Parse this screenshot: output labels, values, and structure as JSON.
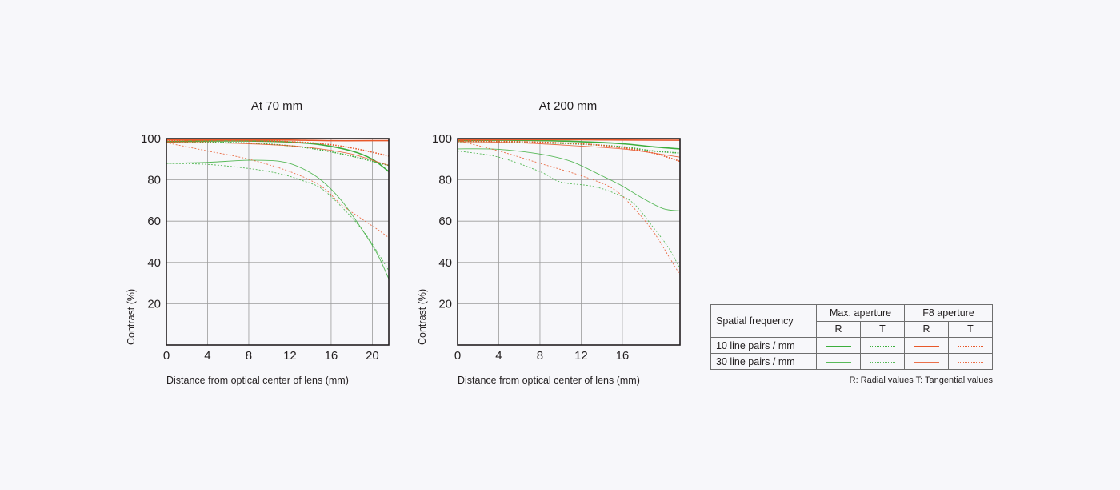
{
  "colors": {
    "max_aperture": "#3cae3c",
    "f8_aperture": "#e8582a",
    "background": "#f7f7fa",
    "grid": "#9b9b9b",
    "frame": "#231f20"
  },
  "chart_data": [
    {
      "type": "line",
      "title": "At 70 mm",
      "xlabel": "Distance from optical center of lens (mm)",
      "ylabel": "Contrast (%)",
      "xlim": [
        0,
        21.6
      ],
      "ylim": [
        0,
        100
      ],
      "x_ticks": [
        "0",
        "4",
        "8",
        "12",
        "16",
        "20"
      ],
      "y_ticks": [
        "20",
        "40",
        "60",
        "80",
        "100"
      ],
      "series": [
        {
          "group": "max_aperture",
          "frequency": "10 line pairs / mm",
          "component": "R",
          "points": [
            [
              0,
              98.5
            ],
            [
              4,
              98.8
            ],
            [
              8,
              98.8
            ],
            [
              12,
              98.3
            ],
            [
              15,
              97
            ],
            [
              18,
              94
            ],
            [
              20,
              90
            ],
            [
              21.6,
              84
            ]
          ]
        },
        {
          "group": "max_aperture",
          "frequency": "10 line pairs / mm",
          "component": "T",
          "points": [
            [
              0,
              98
            ],
            [
              4,
              98.2
            ],
            [
              8,
              97.8
            ],
            [
              12,
              96.5
            ],
            [
              15,
              94.5
            ],
            [
              18,
              91.5
            ],
            [
              20,
              89
            ],
            [
              21.6,
              87
            ]
          ]
        },
        {
          "group": "max_aperture",
          "frequency": "30 line pairs / mm",
          "component": "R",
          "points": [
            [
              0,
              88
            ],
            [
              4,
              88.5
            ],
            [
              8,
              89.5
            ],
            [
              11,
              89
            ],
            [
              13,
              86
            ],
            [
              15,
              80
            ],
            [
              17,
              70
            ],
            [
              19,
              56
            ],
            [
              20.5,
              44
            ],
            [
              21.6,
              32
            ]
          ]
        },
        {
          "group": "max_aperture",
          "frequency": "30 line pairs / mm",
          "component": "T",
          "points": [
            [
              0,
              88
            ],
            [
              4,
              87.5
            ],
            [
              8,
              85.5
            ],
            [
              11,
              83
            ],
            [
              13,
              80
            ],
            [
              15,
              76
            ],
            [
              17,
              67
            ],
            [
              19,
              56
            ],
            [
              20.5,
              45
            ],
            [
              21.6,
              36
            ]
          ]
        },
        {
          "group": "f8_aperture",
          "frequency": "10 line pairs / mm",
          "component": "R",
          "points": [
            [
              0,
              99.3
            ],
            [
              6,
              99.4
            ],
            [
              12,
              99.3
            ],
            [
              16,
              99
            ],
            [
              20,
              99
            ],
            [
              21.6,
              99
            ]
          ]
        },
        {
          "group": "f8_aperture",
          "frequency": "10 line pairs / mm",
          "component": "T",
          "points": [
            [
              0,
              98.8
            ],
            [
              6,
              99
            ],
            [
              12,
              98.5
            ],
            [
              16,
              97
            ],
            [
              19,
              94.5
            ],
            [
              21.6,
              91.5
            ]
          ]
        },
        {
          "group": "f8_aperture",
          "frequency": "30 line pairs / mm",
          "component": "R",
          "points": [
            [
              0,
              98.2
            ],
            [
              4,
              98
            ],
            [
              8,
              97.5
            ],
            [
              12,
              96.5
            ],
            [
              15,
              95
            ],
            [
              18,
              92.5
            ],
            [
              20,
              89.5
            ],
            [
              21.6,
              87
            ]
          ]
        },
        {
          "group": "f8_aperture",
          "frequency": "30 line pairs / mm",
          "component": "T",
          "points": [
            [
              0,
              98
            ],
            [
              4,
              94
            ],
            [
              8,
              90
            ],
            [
              12,
              84
            ],
            [
              15,
              77
            ],
            [
              17,
              68
            ],
            [
              19,
              61
            ],
            [
              20.5,
              56
            ],
            [
              21.6,
              52
            ]
          ]
        }
      ]
    },
    {
      "type": "line",
      "title": "At 200 mm",
      "xlabel": "Distance from optical center of lens (mm)",
      "ylabel": "Contrast (%)",
      "xlim": [
        0,
        21.6
      ],
      "ylim": [
        0,
        100
      ],
      "x_ticks": [
        "0",
        "4",
        "8",
        "12",
        "16"
      ],
      "y_ticks": [
        "20",
        "40",
        "60",
        "80",
        "100"
      ],
      "series": [
        {
          "group": "max_aperture",
          "frequency": "10 line pairs / mm",
          "component": "R",
          "points": [
            [
              0,
              99
            ],
            [
              4,
              99.2
            ],
            [
              8,
              99
            ],
            [
              12,
              98.5
            ],
            [
              16,
              97.5
            ],
            [
              19,
              96
            ],
            [
              21.6,
              95
            ]
          ]
        },
        {
          "group": "max_aperture",
          "frequency": "10 line pairs / mm",
          "component": "T",
          "points": [
            [
              0,
              98.5
            ],
            [
              4,
              98.5
            ],
            [
              8,
              98
            ],
            [
              12,
              97.3
            ],
            [
              16,
              96
            ],
            [
              19,
              94
            ],
            [
              21.6,
              93
            ]
          ]
        },
        {
          "group": "max_aperture",
          "frequency": "30 line pairs / mm",
          "component": "R",
          "points": [
            [
              0,
              95
            ],
            [
              4,
              94.8
            ],
            [
              8,
              92.5
            ],
            [
              11,
              89
            ],
            [
              14,
              82
            ],
            [
              16,
              77
            ],
            [
              18,
              71
            ],
            [
              20,
              66
            ],
            [
              21.6,
              65
            ]
          ]
        },
        {
          "group": "max_aperture",
          "frequency": "30 line pairs / mm",
          "component": "T",
          "points": [
            [
              0,
              94
            ],
            [
              4,
              91
            ],
            [
              8,
              84
            ],
            [
              10,
              79
            ],
            [
              13,
              77
            ],
            [
              15,
              74
            ],
            [
              17,
              69
            ],
            [
              19,
              57
            ],
            [
              20.5,
              47
            ],
            [
              21.6,
              37
            ]
          ]
        },
        {
          "group": "f8_aperture",
          "frequency": "10 line pairs / mm",
          "component": "R",
          "points": [
            [
              0,
              99.4
            ],
            [
              6,
              99.5
            ],
            [
              12,
              99.4
            ],
            [
              16,
              99.3
            ],
            [
              21.6,
              99.2
            ]
          ]
        },
        {
          "group": "f8_aperture",
          "frequency": "10 line pairs / mm",
          "component": "T",
          "points": [
            [
              0,
              99
            ],
            [
              6,
              98.5
            ],
            [
              12,
              97.5
            ],
            [
              16,
              95.5
            ],
            [
              19,
              93
            ],
            [
              21.6,
              89
            ]
          ]
        },
        {
          "group": "f8_aperture",
          "frequency": "30 line pairs / mm",
          "component": "R",
          "points": [
            [
              0,
              98.5
            ],
            [
              4,
              98.2
            ],
            [
              8,
              97.5
            ],
            [
              12,
              96.3
            ],
            [
              16,
              95
            ],
            [
              19,
              93
            ],
            [
              21.6,
              91
            ]
          ]
        },
        {
          "group": "f8_aperture",
          "frequency": "30 line pairs / mm",
          "component": "T",
          "points": [
            [
              0,
              99
            ],
            [
              4,
              94
            ],
            [
              8,
              88
            ],
            [
              12,
              82
            ],
            [
              15,
              76
            ],
            [
              17,
              67
            ],
            [
              19,
              55
            ],
            [
              20.5,
              43
            ],
            [
              21.6,
              34
            ]
          ]
        }
      ]
    }
  ],
  "legend": {
    "header": {
      "spatial_frequency": "Spatial frequency",
      "max_aperture": "Max. aperture",
      "f8_aperture": "F8 aperture",
      "r": "R",
      "t": "T"
    },
    "rows": [
      {
        "label": "10 line pairs / mm",
        "style": "bold"
      },
      {
        "label": "30 line pairs / mm",
        "style": "thin"
      }
    ],
    "note": "R: Radial values  T: Tangential values"
  }
}
